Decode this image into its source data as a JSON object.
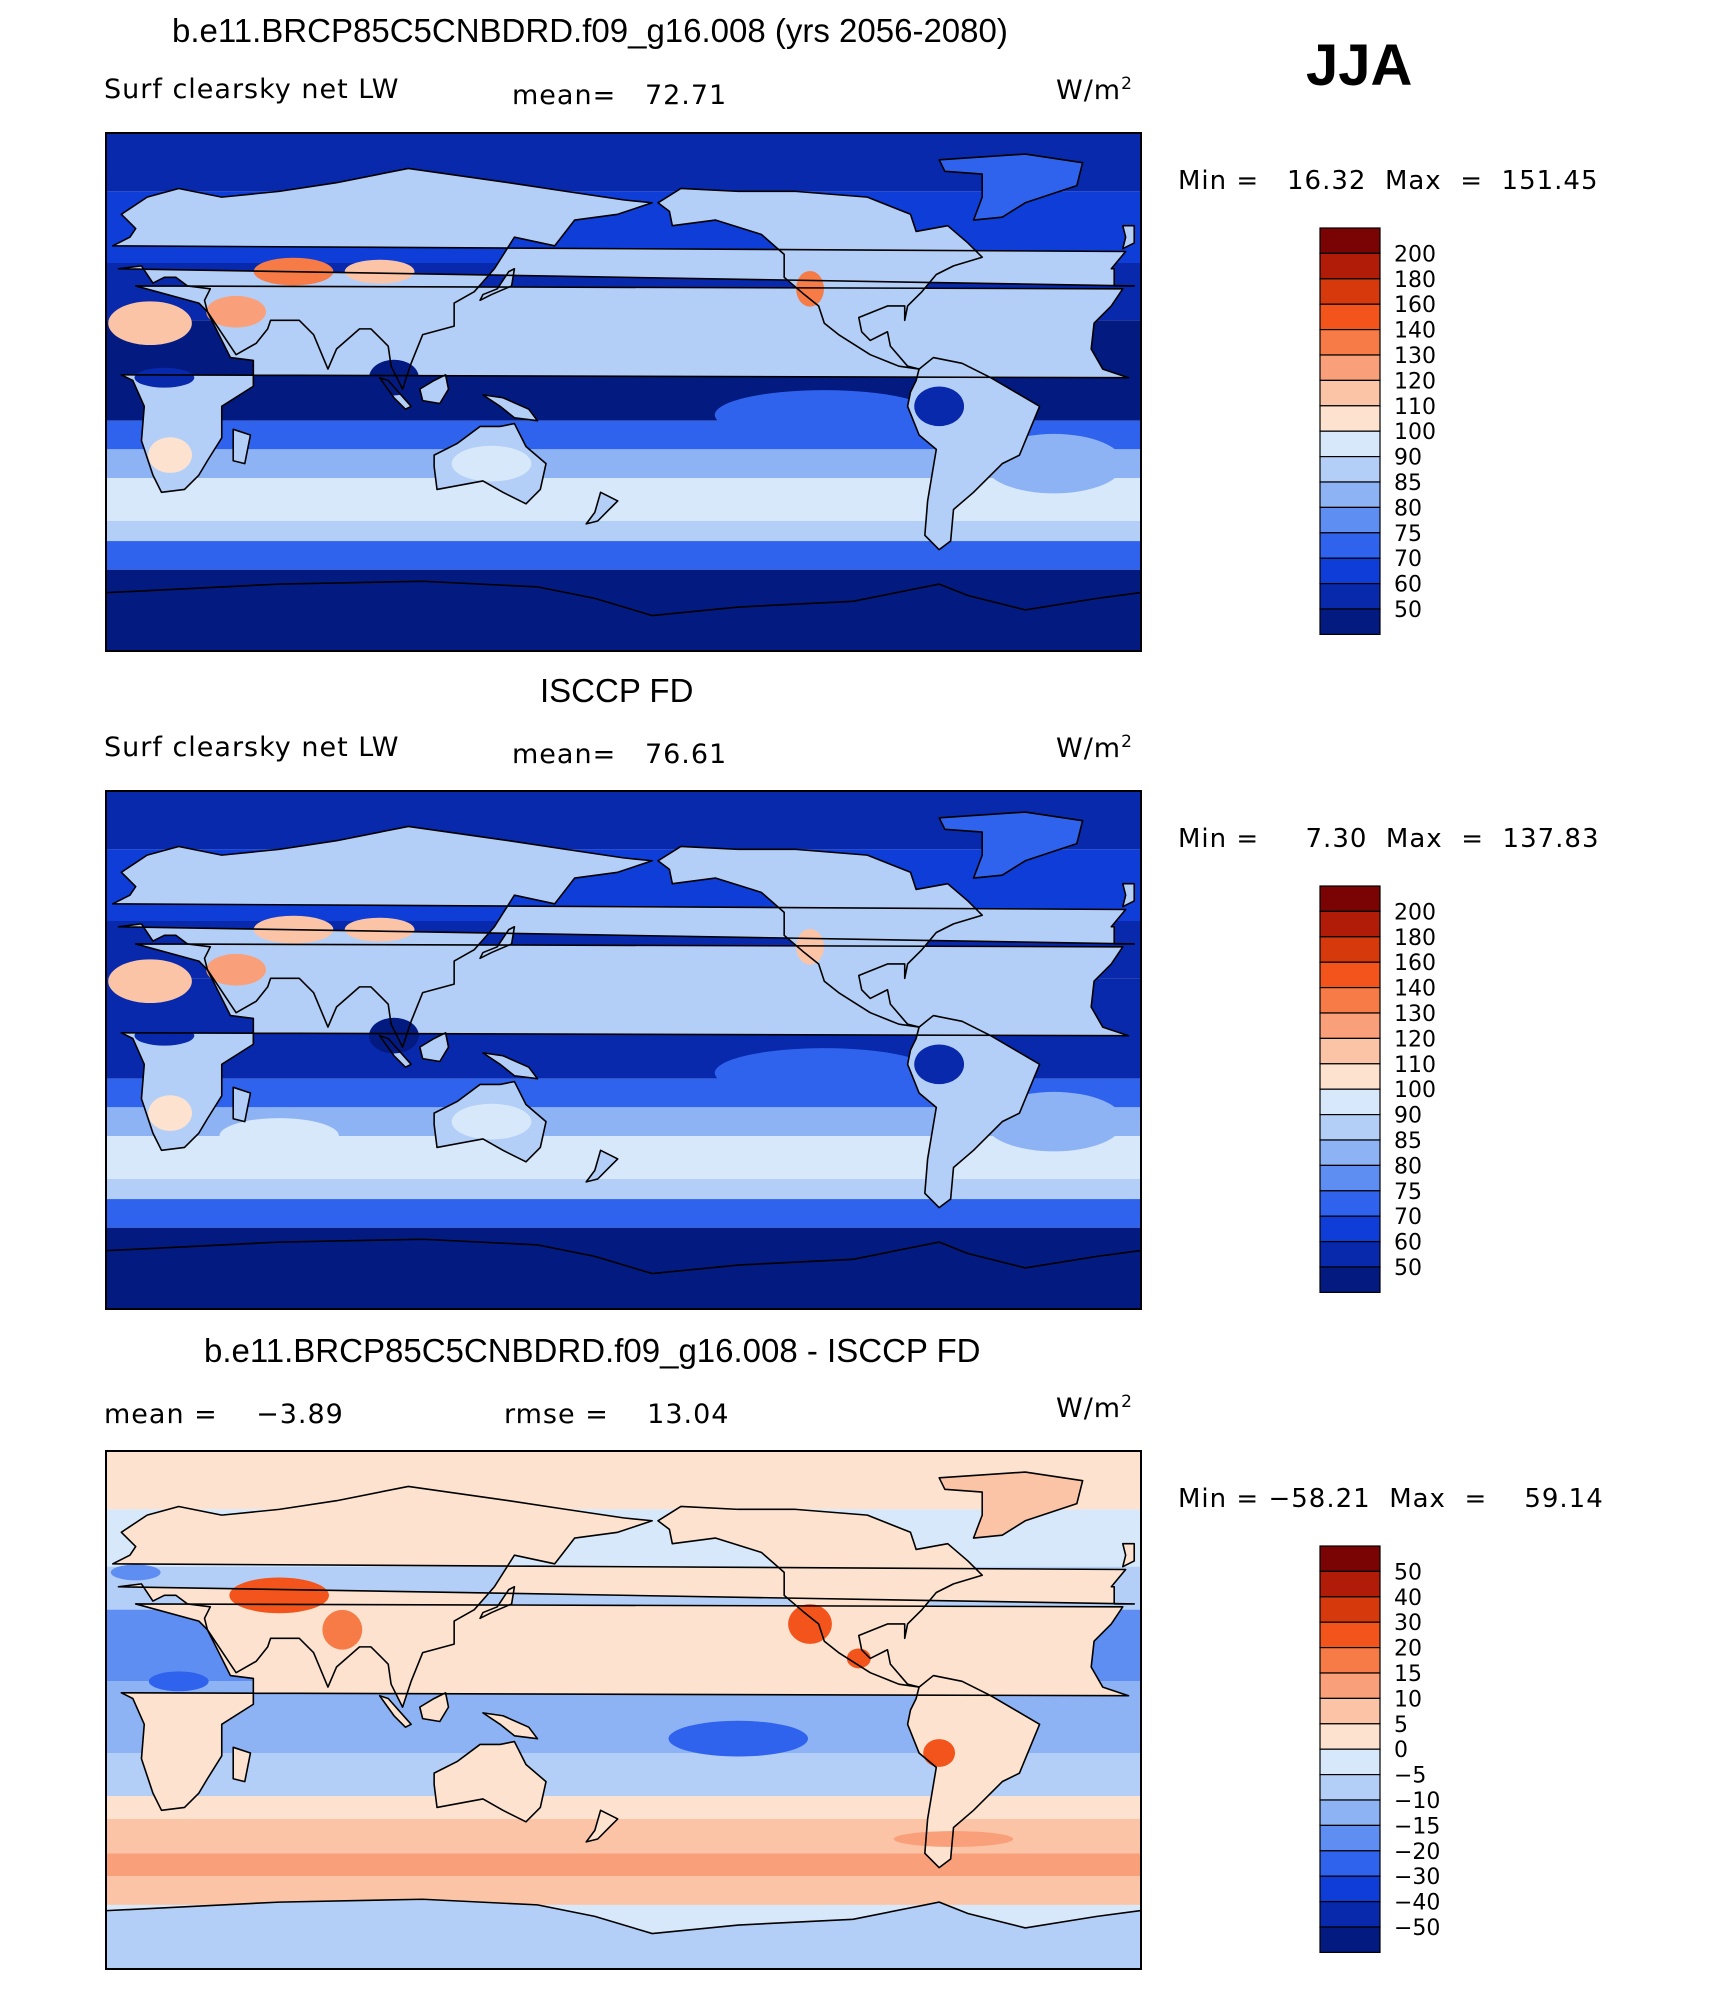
{
  "season": "JJA",
  "panels": [
    {
      "title": "b.e11.BRCP85C5CNBDRD.f09_g16.008 (yrs 2056-2080)",
      "left_label": "Surf clearsky net LW",
      "center_label": "mean=   72.71",
      "units": "W/m",
      "units_exp": "2",
      "minmax": "Min =   16.32  Max  =  151.45",
      "colorbar": {
        "labels": [
          "200",
          "180",
          "160",
          "140",
          "130",
          "120",
          "110",
          "100",
          "90",
          "85",
          "80",
          "75",
          "70",
          "60",
          "50"
        ],
        "colors": [
          "#7a0403",
          "#b01c07",
          "#d63a0c",
          "#f3541c",
          "#f77b46",
          "#f9a07a",
          "#fcc4a6",
          "#fde3cf",
          "#d8e8fb",
          "#b3cff7",
          "#8db3f4",
          "#5f8ef2",
          "#2f63ee",
          "#0f3dd8",
          "#0829ab",
          "#031a80"
        ]
      },
      "scheme": "abs"
    },
    {
      "title": "ISCCP FD",
      "left_label": "Surf clearsky net LW",
      "center_label": "mean=   76.61",
      "units": "W/m",
      "units_exp": "2",
      "minmax": "Min =     7.30  Max  =  137.83",
      "colorbar": {
        "labels": [
          "200",
          "180",
          "160",
          "140",
          "130",
          "120",
          "110",
          "100",
          "90",
          "85",
          "80",
          "75",
          "70",
          "60",
          "50"
        ],
        "colors": [
          "#7a0403",
          "#b01c07",
          "#d63a0c",
          "#f3541c",
          "#f77b46",
          "#f9a07a",
          "#fcc4a6",
          "#fde3cf",
          "#d8e8fb",
          "#b3cff7",
          "#8db3f4",
          "#5f8ef2",
          "#2f63ee",
          "#0f3dd8",
          "#0829ab",
          "#031a80"
        ]
      },
      "scheme": "abs2"
    },
    {
      "title": "b.e11.BRCP85C5CNBDRD.f09_g16.008 - ISCCP FD",
      "left_label": "mean =    −3.89",
      "center_label": "rmse =    13.04",
      "units": "W/m",
      "units_exp": "2",
      "minmax": "Min = −58.21  Max  =    59.14",
      "colorbar": {
        "labels": [
          "50",
          "40",
          "30",
          "20",
          "15",
          "10",
          "5",
          "0",
          "−5",
          "−10",
          "−15",
          "−20",
          "−30",
          "−40",
          "−50"
        ],
        "colors": [
          "#7a0403",
          "#b01c07",
          "#d63a0c",
          "#f3541c",
          "#f77b46",
          "#f9a07a",
          "#fcc4a6",
          "#fde3cf",
          "#d8e8fb",
          "#b3cff7",
          "#8db3f4",
          "#5f8ef2",
          "#2f63ee",
          "#0f3dd8",
          "#0829ab",
          "#031a80"
        ]
      },
      "scheme": "diff"
    }
  ]
}
